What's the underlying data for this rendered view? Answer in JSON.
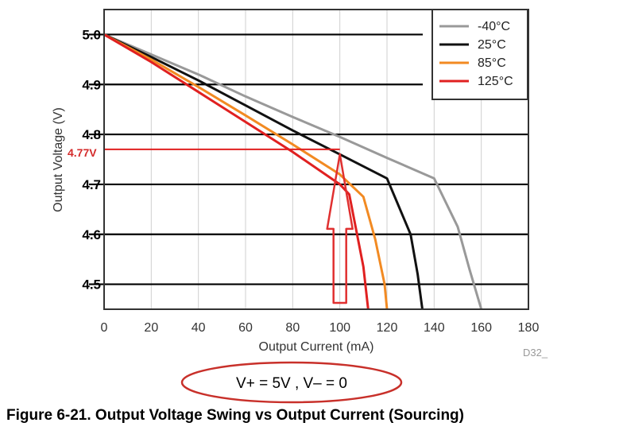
{
  "chart_data": {
    "type": "line",
    "title": "",
    "xlabel": "Output Current (mA)",
    "ylabel": "Output Voltage (V)",
    "xlim": [
      0,
      180
    ],
    "ylim": [
      4.45,
      5.05
    ],
    "x_ticks": [
      0,
      20,
      40,
      60,
      80,
      100,
      120,
      140,
      160,
      180
    ],
    "x_tick_labels": [
      "0",
      "20",
      "40",
      "60",
      "80",
      "100",
      "120",
      "140",
      "160",
      "180"
    ],
    "y_ticks": [
      4.5,
      4.6,
      4.7,
      4.8,
      4.9,
      5.0
    ],
    "y_tick_labels": [
      "4.5",
      "4.6",
      "4.7",
      "4.8",
      "4.9",
      "5.0"
    ],
    "grid": true,
    "legend_position": "top-right",
    "series": [
      {
        "name": "-40°C",
        "color": "#999999",
        "x": [
          0,
          20,
          40,
          60,
          80,
          100,
          120,
          140,
          150,
          155,
          160
        ],
        "y": [
          5.0,
          4.96,
          4.92,
          4.876,
          4.835,
          4.795,
          4.753,
          4.712,
          4.615,
          4.53,
          4.45
        ]
      },
      {
        "name": "25°C",
        "color": "#111111",
        "x": [
          0,
          20,
          40,
          60,
          80,
          100,
          120,
          130,
          133,
          135
        ],
        "y": [
          5.0,
          4.955,
          4.908,
          4.858,
          4.808,
          4.76,
          4.712,
          4.6,
          4.52,
          4.45
        ]
      },
      {
        "name": "85°C",
        "color": "#f28a22",
        "x": [
          0,
          20,
          40,
          60,
          80,
          100,
          110,
          115,
          119,
          120
        ],
        "y": [
          5.0,
          4.95,
          4.895,
          4.838,
          4.78,
          4.72,
          4.675,
          4.59,
          4.5,
          4.45
        ]
      },
      {
        "name": "125°C",
        "color": "#e02020",
        "x": [
          0,
          20,
          40,
          60,
          80,
          100,
          104,
          110,
          112
        ],
        "y": [
          5.0,
          4.945,
          4.885,
          4.825,
          4.765,
          4.7,
          4.68,
          4.535,
          4.45
        ]
      }
    ],
    "annotations": {
      "marker_label": "4.77V",
      "marker_value": 4.77,
      "marker_x": 100,
      "device_code": "D32_",
      "supply_note": "V+ = 5V , V– = 0"
    }
  },
  "caption": "Figure 6-21. Output Voltage Swing vs Output Current (Sourcing)"
}
